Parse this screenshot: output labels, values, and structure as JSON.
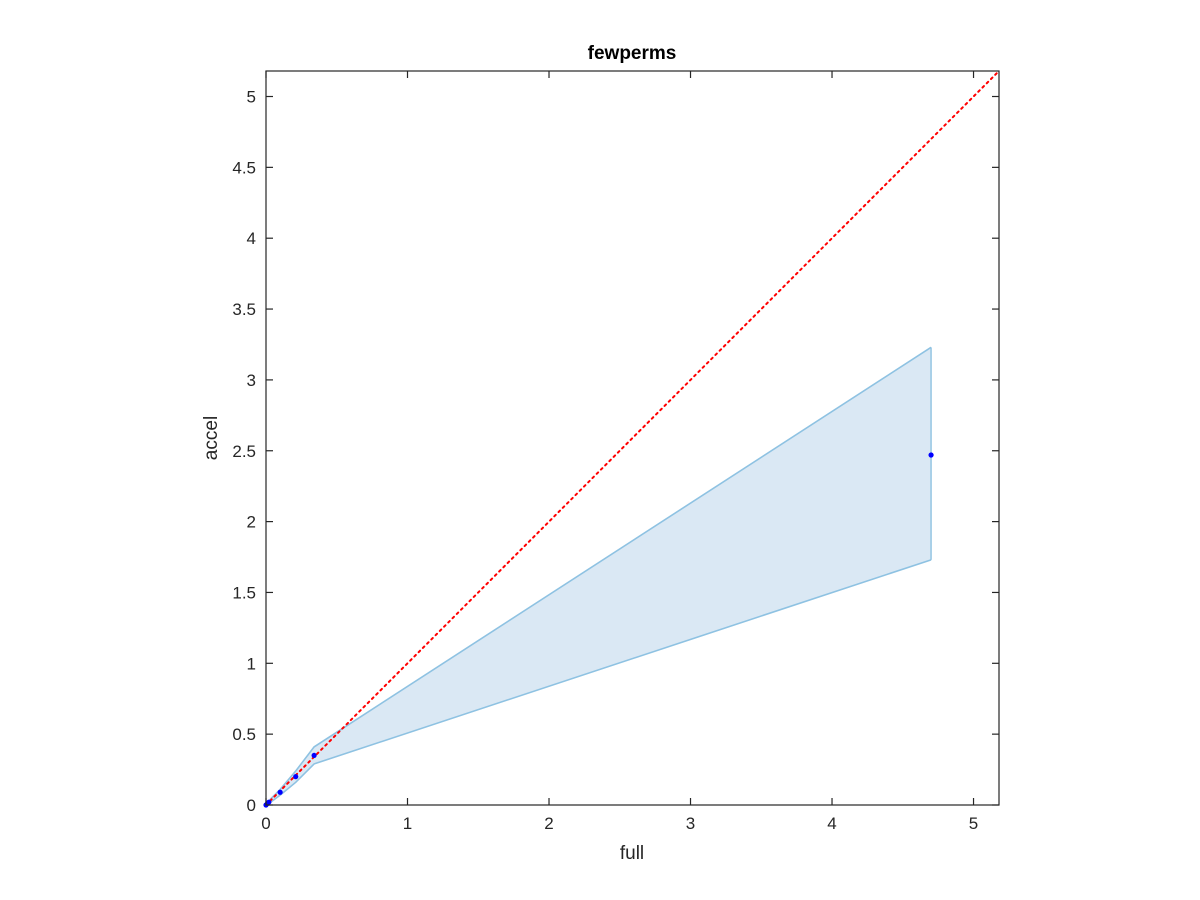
{
  "chart_data": {
    "type": "scatter",
    "title": "fewperms",
    "xlabel": "full",
    "ylabel": "accel",
    "xlim": [
      0,
      5.18
    ],
    "ylim": [
      0,
      5.18
    ],
    "xticks": [
      0,
      1,
      2,
      3,
      4,
      5
    ],
    "xtick_labels": [
      "0",
      "1",
      "2",
      "3",
      "4",
      "5"
    ],
    "yticks": [
      0,
      0.5,
      1,
      1.5,
      2,
      2.5,
      3,
      3.5,
      4,
      4.5,
      5
    ],
    "ytick_labels": [
      "0",
      "0.5",
      "1",
      "1.5",
      "2",
      "2.5",
      "3",
      "3.5",
      "4",
      "4.5",
      "5"
    ],
    "grid": false,
    "legend": "none",
    "series": [
      {
        "kind": "points",
        "color": "#0000ff",
        "x": [
          0.0,
          0.01,
          0.02,
          0.1,
          0.21,
          0.34,
          4.7
        ],
        "y": [
          0.0,
          0.01,
          0.02,
          0.09,
          0.2,
          0.35,
          2.47
        ]
      },
      {
        "kind": "band",
        "fill_color": "#dae8f4",
        "line_color": "#8ec2e2",
        "x": [
          0.0,
          0.01,
          0.02,
          0.1,
          0.21,
          0.34,
          4.7
        ],
        "upper": [
          0.0,
          0.015,
          0.03,
          0.11,
          0.24,
          0.41,
          3.23
        ],
        "lower": [
          0.0,
          0.005,
          0.01,
          0.07,
          0.16,
          0.29,
          1.73
        ]
      },
      {
        "kind": "reference-line",
        "style": "dotted",
        "color": "#ff0000",
        "x": [
          0,
          5.18
        ],
        "y": [
          0,
          5.18
        ]
      }
    ]
  }
}
